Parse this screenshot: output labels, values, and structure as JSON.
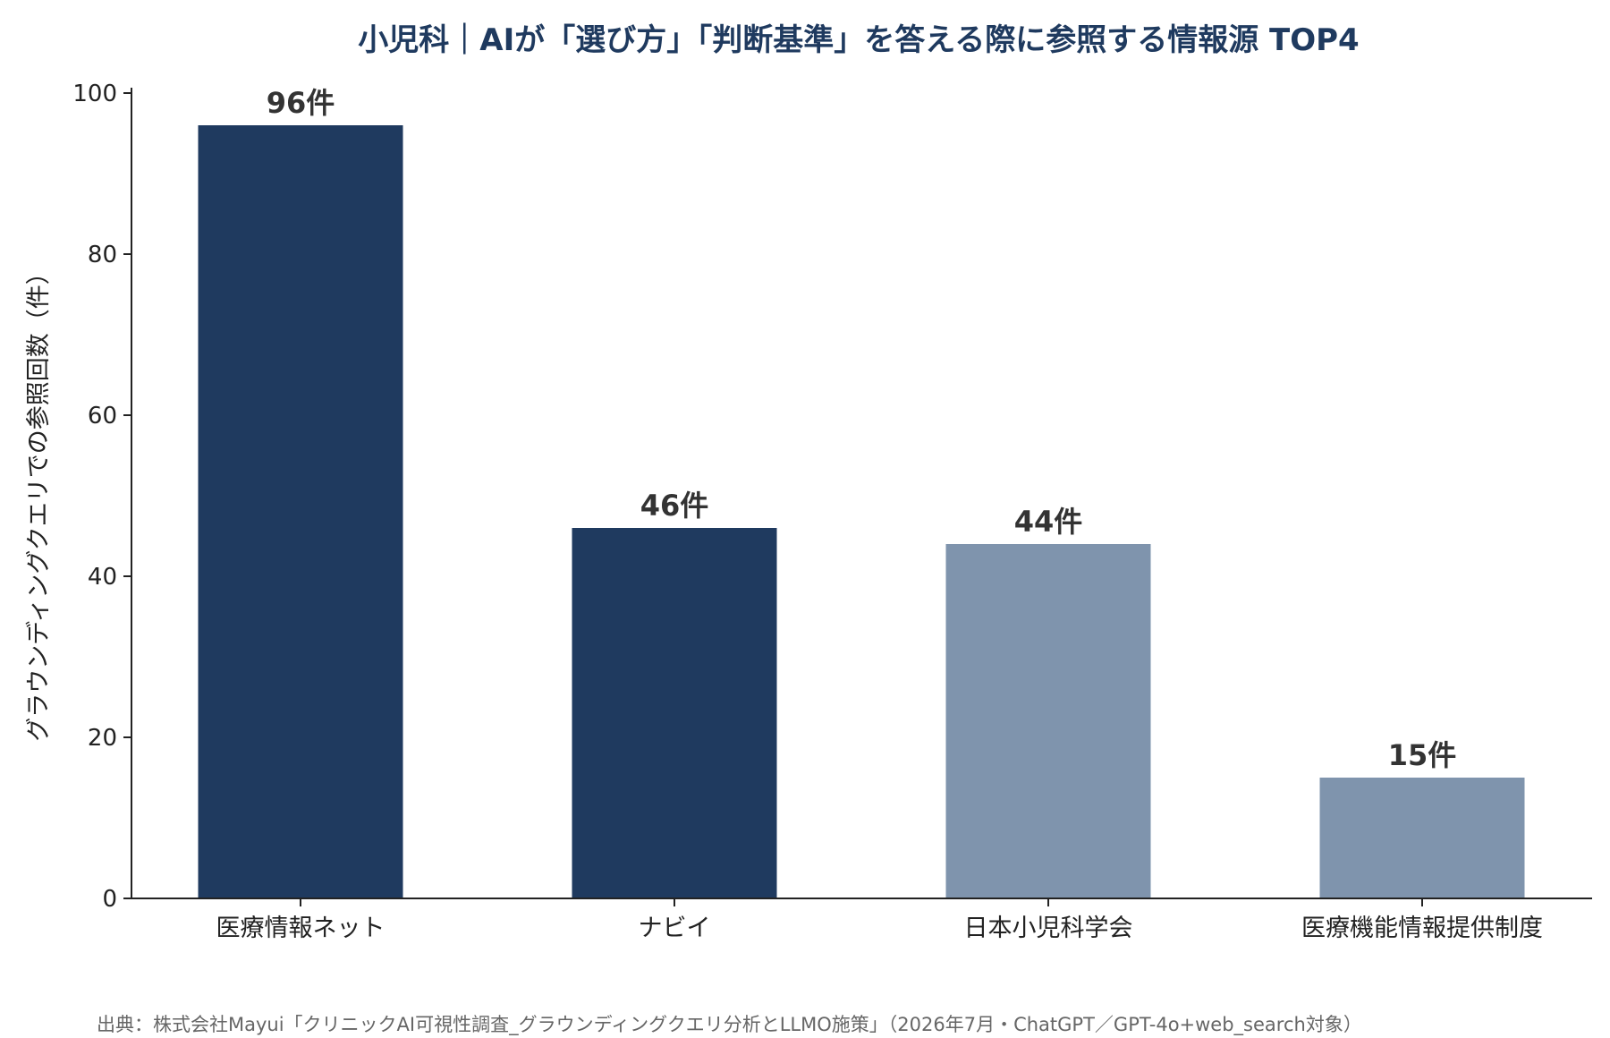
{
  "chart_data": {
    "type": "bar",
    "title": "小児科｜AIが「選び方」「判断基準」を答える際に参照する情報源 TOP4",
    "xlabel": "",
    "ylabel": "グラウンディングクエリでの参照回数（件）",
    "ylim": [
      0,
      100
    ],
    "yticks": [
      0,
      20,
      40,
      60,
      80,
      100
    ],
    "categories": [
      "医療情報ネット",
      "ナビイ",
      "日本小児科学会",
      "医療機能情報提供制度"
    ],
    "values": [
      96,
      46,
      44,
      15
    ],
    "value_labels": [
      "96件",
      "46件",
      "44件",
      "15件"
    ],
    "bar_colors": [
      "#1f3a5f",
      "#1f3a5f",
      "#7f94ad",
      "#7f94ad"
    ],
    "grid": false,
    "legend": "none"
  },
  "source": "出典：株式会社Mayui「クリニックAI可視性調査_グラウンディングクエリ分析とLLMO施策」（2026年7月・ChatGPT／GPT-4o+web_search対象）",
  "colors": {
    "title": "#1f3a5f",
    "dark_bar": "#1f3a5f",
    "light_bar": "#7f94ad",
    "axis": "#222222"
  }
}
